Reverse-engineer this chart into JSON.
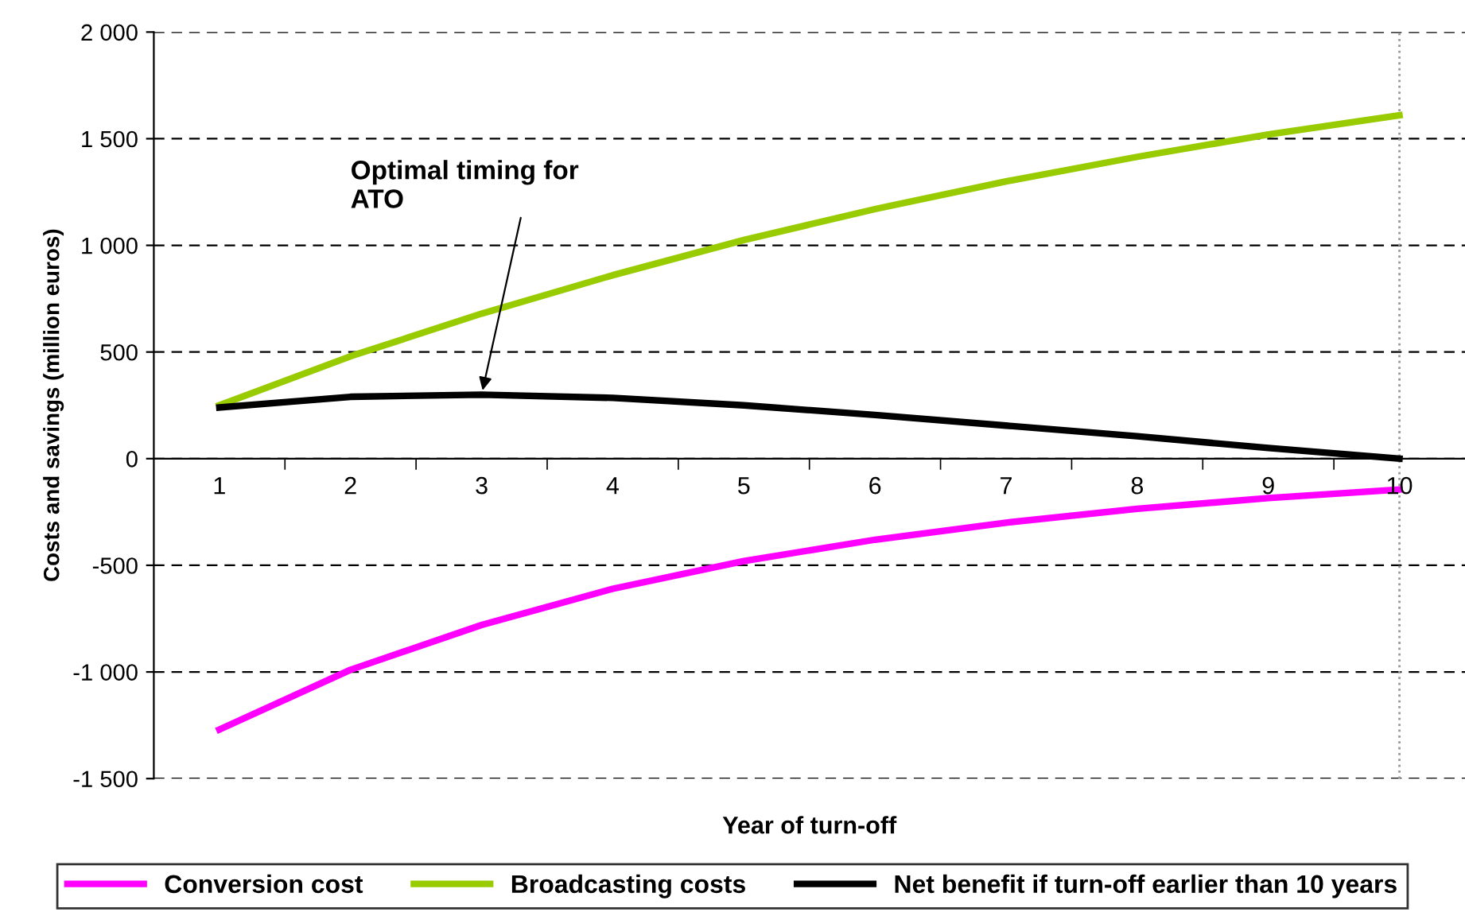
{
  "chart_data": {
    "type": "line",
    "xlabel": "Year of turn-off",
    "ylabel": "Costs and savings (million euros)",
    "categories": [
      "1",
      "2",
      "3",
      "4",
      "5",
      "6",
      "7",
      "8",
      "9",
      "10"
    ],
    "series": [
      {
        "name": "Conversion cost",
        "color": "#ff00ff",
        "values": [
          -1270,
          -990,
          -780,
          -610,
          -480,
          -380,
          -300,
          -235,
          -185,
          -145
        ]
      },
      {
        "name": "Broadcasting costs",
        "color": "#99cc00",
        "values": [
          250,
          480,
          680,
          860,
          1025,
          1170,
          1300,
          1415,
          1520,
          1610
        ]
      },
      {
        "name": "Net benefit if turn-off earlier than 10 years",
        "color": "#000000",
        "values": [
          240,
          290,
          300,
          285,
          250,
          205,
          155,
          105,
          50,
          0
        ]
      }
    ],
    "ylim": [
      -1500,
      2000
    ],
    "yticks": [
      {
        "value": -1500,
        "label": "-1 500"
      },
      {
        "value": -1000,
        "label": "-1 000"
      },
      {
        "value": -500,
        "label": "-500"
      },
      0,
      500,
      {
        "value": 1000,
        "label": "1 000"
      },
      {
        "value": 1500,
        "label": "1 500"
      },
      {
        "value": 2000,
        "label": "2 000"
      }
    ],
    "grid": "y",
    "legend": "bottom",
    "marker": "none",
    "line_style": "solid",
    "ref_lines": [
      {
        "axis": "x",
        "value": "10",
        "color": "#999999",
        "line_style": "dotted"
      }
    ],
    "annotations": [
      {
        "text": "Optimal timing for\nATO",
        "x": "3",
        "y": 300
      }
    ]
  }
}
